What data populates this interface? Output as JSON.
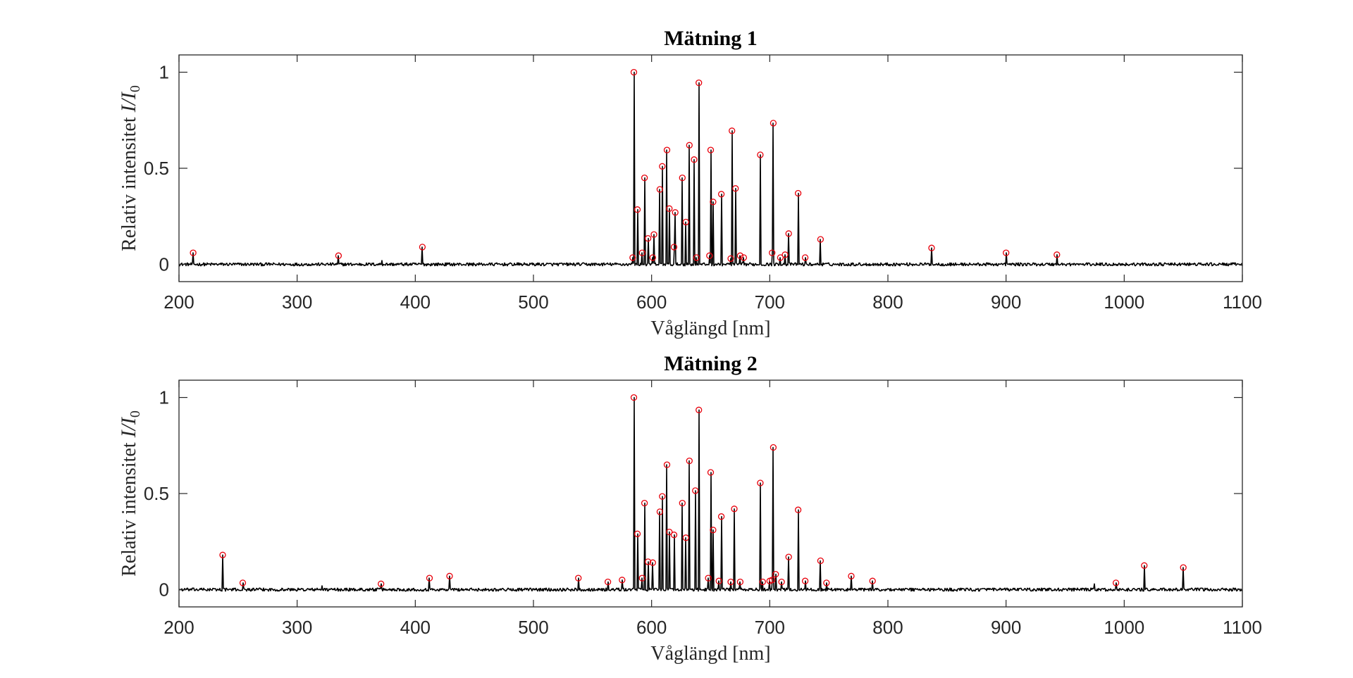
{
  "chart_data": [
    {
      "type": "line",
      "title": "Mätning 1",
      "xlabel": "Våglängd [nm]",
      "ylabel": "Relativ intensitet",
      "ylabel_math": {
        "var": "I/I",
        "sub": "0"
      },
      "xlim": [
        200,
        1100
      ],
      "ylim": [
        -0.09,
        1.09
      ],
      "xticks": [
        200,
        300,
        400,
        500,
        600,
        700,
        800,
        900,
        1000,
        1100
      ],
      "yticks": [
        0,
        0.5,
        1
      ],
      "ytick_labels": [
        "0",
        "0.5",
        "1"
      ],
      "grid": false,
      "series": [
        {
          "kind": "spectrum",
          "color": "#000000",
          "noise_amplitude": 0.008,
          "peaks_x": [
            212,
            335,
            372,
            406,
            584,
            585,
            588,
            592,
            594,
            597,
            601,
            602,
            607,
            609,
            613,
            615,
            619,
            620,
            626,
            629,
            632,
            636,
            638,
            640,
            649,
            650,
            652,
            659,
            667,
            668,
            671,
            675,
            678,
            692,
            702,
            703,
            709,
            713,
            716,
            724,
            730,
            743,
            837,
            900,
            943
          ],
          "peaks_y": [
            0.06,
            0.045,
            0.02,
            0.09,
            0.035,
            1.0,
            0.285,
            0.06,
            0.45,
            0.135,
            0.035,
            0.155,
            0.39,
            0.51,
            0.595,
            0.29,
            0.09,
            0.27,
            0.45,
            0.22,
            0.62,
            0.545,
            0.035,
            0.945,
            0.045,
            0.595,
            0.325,
            0.365,
            0.03,
            0.695,
            0.395,
            0.045,
            0.035,
            0.57,
            0.06,
            0.735,
            0.035,
            0.05,
            0.16,
            0.37,
            0.035,
            0.13,
            0.085,
            0.06,
            0.05
          ]
        },
        {
          "kind": "markers",
          "color": "#e8000b",
          "x": [
            212,
            335,
            406,
            584,
            585,
            588,
            592,
            594,
            597,
            601,
            602,
            607,
            609,
            613,
            615,
            619,
            620,
            626,
            629,
            632,
            636,
            638,
            640,
            649,
            650,
            652,
            659,
            667,
            668,
            671,
            675,
            678,
            692,
            702,
            703,
            709,
            713,
            716,
            724,
            730,
            743,
            837,
            900,
            943
          ],
          "y": [
            0.06,
            0.045,
            0.09,
            0.035,
            1.0,
            0.285,
            0.06,
            0.45,
            0.135,
            0.035,
            0.155,
            0.39,
            0.51,
            0.595,
            0.29,
            0.09,
            0.27,
            0.45,
            0.22,
            0.62,
            0.545,
            0.035,
            0.945,
            0.045,
            0.595,
            0.325,
            0.365,
            0.03,
            0.695,
            0.395,
            0.045,
            0.035,
            0.57,
            0.06,
            0.735,
            0.035,
            0.05,
            0.16,
            0.37,
            0.035,
            0.13,
            0.085,
            0.06,
            0.05
          ]
        }
      ]
    },
    {
      "type": "line",
      "title": "Mätning 2",
      "xlabel": "Våglängd [nm]",
      "ylabel": "Relativ intensitet",
      "ylabel_math": {
        "var": "I/I",
        "sub": "0"
      },
      "xlim": [
        200,
        1100
      ],
      "ylim": [
        -0.09,
        1.09
      ],
      "xticks": [
        200,
        300,
        400,
        500,
        600,
        700,
        800,
        900,
        1000,
        1100
      ],
      "yticks": [
        0,
        0.5,
        1
      ],
      "ytick_labels": [
        "0",
        "0.5",
        "1"
      ],
      "grid": false,
      "series": [
        {
          "kind": "spectrum",
          "color": "#000000",
          "noise_amplitude": 0.008,
          "peaks_x": [
            237,
            254,
            321,
            371,
            412,
            429,
            538,
            563,
            575,
            585,
            588,
            592,
            594,
            597,
            601,
            607,
            609,
            613,
            615,
            619,
            626,
            629,
            632,
            637,
            640,
            648,
            650,
            652,
            657,
            659,
            667,
            670,
            675,
            692,
            694,
            700,
            702,
            703,
            705,
            710,
            716,
            724,
            730,
            743,
            748,
            769,
            787,
            975,
            993,
            1017,
            1050
          ],
          "peaks_y": [
            0.18,
            0.035,
            0.02,
            0.03,
            0.06,
            0.07,
            0.06,
            0.04,
            0.05,
            1.0,
            0.29,
            0.06,
            0.45,
            0.145,
            0.14,
            0.405,
            0.485,
            0.65,
            0.3,
            0.285,
            0.45,
            0.27,
            0.67,
            0.515,
            0.935,
            0.06,
            0.61,
            0.31,
            0.045,
            0.38,
            0.04,
            0.42,
            0.04,
            0.555,
            0.04,
            0.045,
            0.05,
            0.74,
            0.08,
            0.04,
            0.17,
            0.415,
            0.045,
            0.15,
            0.035,
            0.07,
            0.045,
            0.03,
            0.035,
            0.125,
            0.115
          ]
        },
        {
          "kind": "markers",
          "color": "#e8000b",
          "x": [
            237,
            254,
            371,
            412,
            429,
            538,
            563,
            575,
            585,
            588,
            592,
            594,
            597,
            601,
            607,
            609,
            613,
            615,
            619,
            626,
            629,
            632,
            637,
            640,
            648,
            650,
            652,
            657,
            659,
            667,
            670,
            675,
            692,
            694,
            700,
            702,
            703,
            705,
            710,
            716,
            724,
            730,
            743,
            748,
            769,
            787,
            993,
            1017,
            1050
          ],
          "y": [
            0.18,
            0.035,
            0.03,
            0.06,
            0.07,
            0.06,
            0.04,
            0.05,
            1.0,
            0.29,
            0.06,
            0.45,
            0.145,
            0.14,
            0.405,
            0.485,
            0.65,
            0.3,
            0.285,
            0.45,
            0.27,
            0.67,
            0.515,
            0.935,
            0.06,
            0.61,
            0.31,
            0.045,
            0.38,
            0.04,
            0.42,
            0.04,
            0.555,
            0.04,
            0.045,
            0.05,
            0.74,
            0.08,
            0.04,
            0.17,
            0.415,
            0.045,
            0.15,
            0.035,
            0.07,
            0.045,
            0.035,
            0.125,
            0.115
          ]
        }
      ]
    }
  ]
}
